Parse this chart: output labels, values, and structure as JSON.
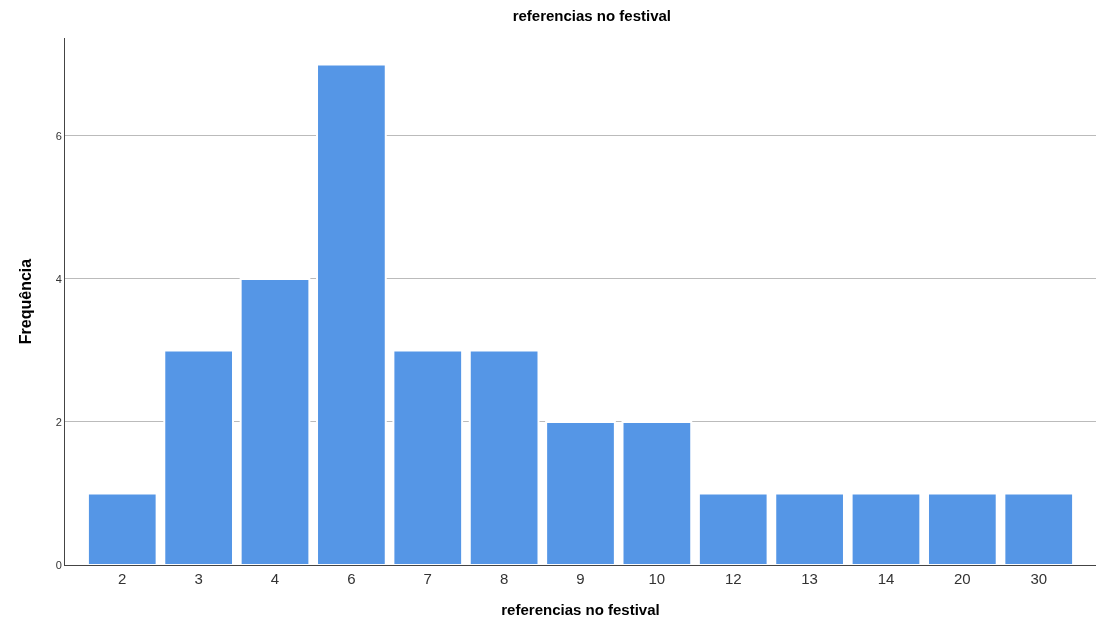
{
  "chart_data": {
    "type": "bar",
    "title": "referencias no festival",
    "xlabel": "referencias no festival",
    "ylabel": "Frequência",
    "categories": [
      "2",
      "3",
      "4",
      "6",
      "7",
      "8",
      "9",
      "10",
      "12",
      "13",
      "14",
      "20",
      "30"
    ],
    "values": [
      1,
      3,
      4,
      7,
      3,
      3,
      2,
      2,
      1,
      1,
      1,
      1,
      1
    ],
    "color": "#5596e6",
    "ylim": [
      0,
      7.37
    ],
    "yticks": [
      0,
      2,
      4,
      6
    ],
    "grid": "y"
  }
}
